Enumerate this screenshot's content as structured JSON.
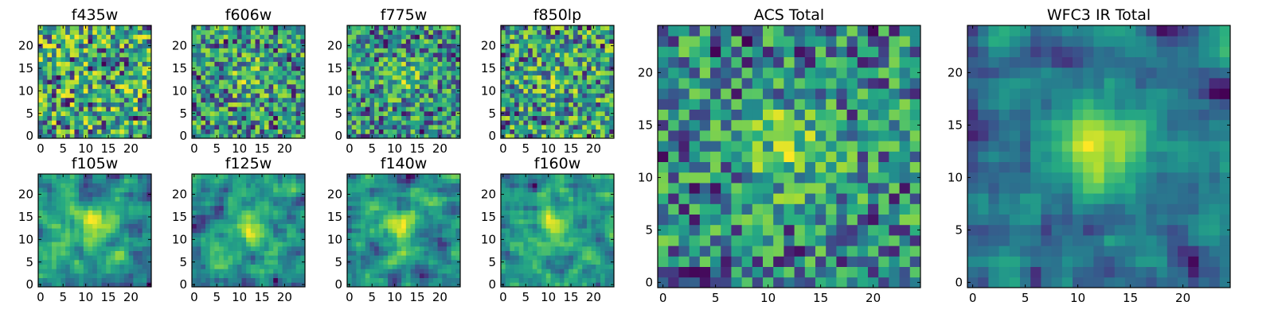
{
  "figure": {
    "colormap": "viridis",
    "colors": [
      "#440154",
      "#31688e",
      "#35b779",
      "#fde725"
    ]
  },
  "chart_data": [
    {
      "type": "heatmap",
      "title": "f435w",
      "shape": [
        25,
        25
      ],
      "seed": 11,
      "smooth": 0,
      "center_boost": 0.0,
      "xticks": [
        0,
        5,
        10,
        15,
        20
      ],
      "yticks": [
        0,
        5,
        10,
        15,
        20
      ],
      "xlim": [
        -0.5,
        24.5
      ],
      "ylim": [
        -0.5,
        24.5
      ]
    },
    {
      "type": "heatmap",
      "title": "f606w",
      "shape": [
        25,
        25
      ],
      "seed": 23,
      "smooth": 0,
      "center_boost": 0.25,
      "xticks": [
        0,
        5,
        10,
        15,
        20
      ],
      "yticks": [
        0,
        5,
        10,
        15,
        20
      ],
      "xlim": [
        -0.5,
        24.5
      ],
      "ylim": [
        -0.5,
        24.5
      ]
    },
    {
      "type": "heatmap",
      "title": "f775w",
      "shape": [
        25,
        25
      ],
      "seed": 37,
      "smooth": 0,
      "center_boost": 0.3,
      "xticks": [
        0,
        5,
        10,
        15,
        20
      ],
      "yticks": [
        0,
        5,
        10,
        15,
        20
      ],
      "xlim": [
        -0.5,
        24.5
      ],
      "ylim": [
        -0.5,
        24.5
      ]
    },
    {
      "type": "heatmap",
      "title": "f850lp",
      "shape": [
        25,
        25
      ],
      "seed": 41,
      "smooth": 0,
      "center_boost": 0.15,
      "xticks": [
        0,
        5,
        10,
        15,
        20
      ],
      "yticks": [
        0,
        5,
        10,
        15,
        20
      ],
      "xlim": [
        -0.5,
        24.5
      ],
      "ylim": [
        -0.5,
        24.5
      ]
    },
    {
      "type": "heatmap",
      "title": "f105w",
      "shape": [
        25,
        25
      ],
      "seed": 53,
      "smooth": 1,
      "center_boost": 0.35,
      "xticks": [
        0,
        5,
        10,
        15,
        20
      ],
      "yticks": [
        0,
        5,
        10,
        15,
        20
      ],
      "xlim": [
        -0.5,
        24.5
      ],
      "ylim": [
        -0.5,
        24.5
      ]
    },
    {
      "type": "heatmap",
      "title": "f125w",
      "shape": [
        25,
        25
      ],
      "seed": 67,
      "smooth": 1,
      "center_boost": 0.3,
      "xticks": [
        0,
        5,
        10,
        15,
        20
      ],
      "yticks": [
        0,
        5,
        10,
        15,
        20
      ],
      "xlim": [
        -0.5,
        24.5
      ],
      "ylim": [
        -0.5,
        24.5
      ]
    },
    {
      "type": "heatmap",
      "title": "f140w",
      "shape": [
        25,
        25
      ],
      "seed": 71,
      "smooth": 1,
      "center_boost": 0.3,
      "xticks": [
        0,
        5,
        10,
        15,
        20
      ],
      "yticks": [
        0,
        5,
        10,
        15,
        20
      ],
      "xlim": [
        -0.5,
        24.5
      ],
      "ylim": [
        -0.5,
        24.5
      ]
    },
    {
      "type": "heatmap",
      "title": "f160w",
      "shape": [
        25,
        25
      ],
      "seed": 89,
      "smooth": 1,
      "center_boost": 0.3,
      "xticks": [
        0,
        5,
        10,
        15,
        20
      ],
      "yticks": [
        0,
        5,
        10,
        15,
        20
      ],
      "xlim": [
        -0.5,
        24.5
      ],
      "ylim": [
        -0.5,
        24.5
      ]
    },
    {
      "type": "heatmap",
      "title": "ACS Total",
      "shape": [
        25,
        25
      ],
      "seed": 97,
      "smooth": 0,
      "center_boost": 0.45,
      "xticks": [
        0,
        5,
        10,
        15,
        20
      ],
      "yticks": [
        0,
        5,
        10,
        15,
        20
      ],
      "xlim": [
        -0.5,
        24.5
      ],
      "ylim": [
        -0.5,
        24.5
      ]
    },
    {
      "type": "heatmap",
      "title": "WFC3 IR Total",
      "shape": [
        25,
        25
      ],
      "seed": 113,
      "smooth": 1,
      "center_boost": 0.6,
      "xticks": [
        0,
        5,
        10,
        15,
        20
      ],
      "yticks": [
        0,
        5,
        10,
        15,
        20
      ],
      "xlim": [
        -0.5,
        24.5
      ],
      "ylim": [
        -0.5,
        24.5
      ]
    }
  ]
}
